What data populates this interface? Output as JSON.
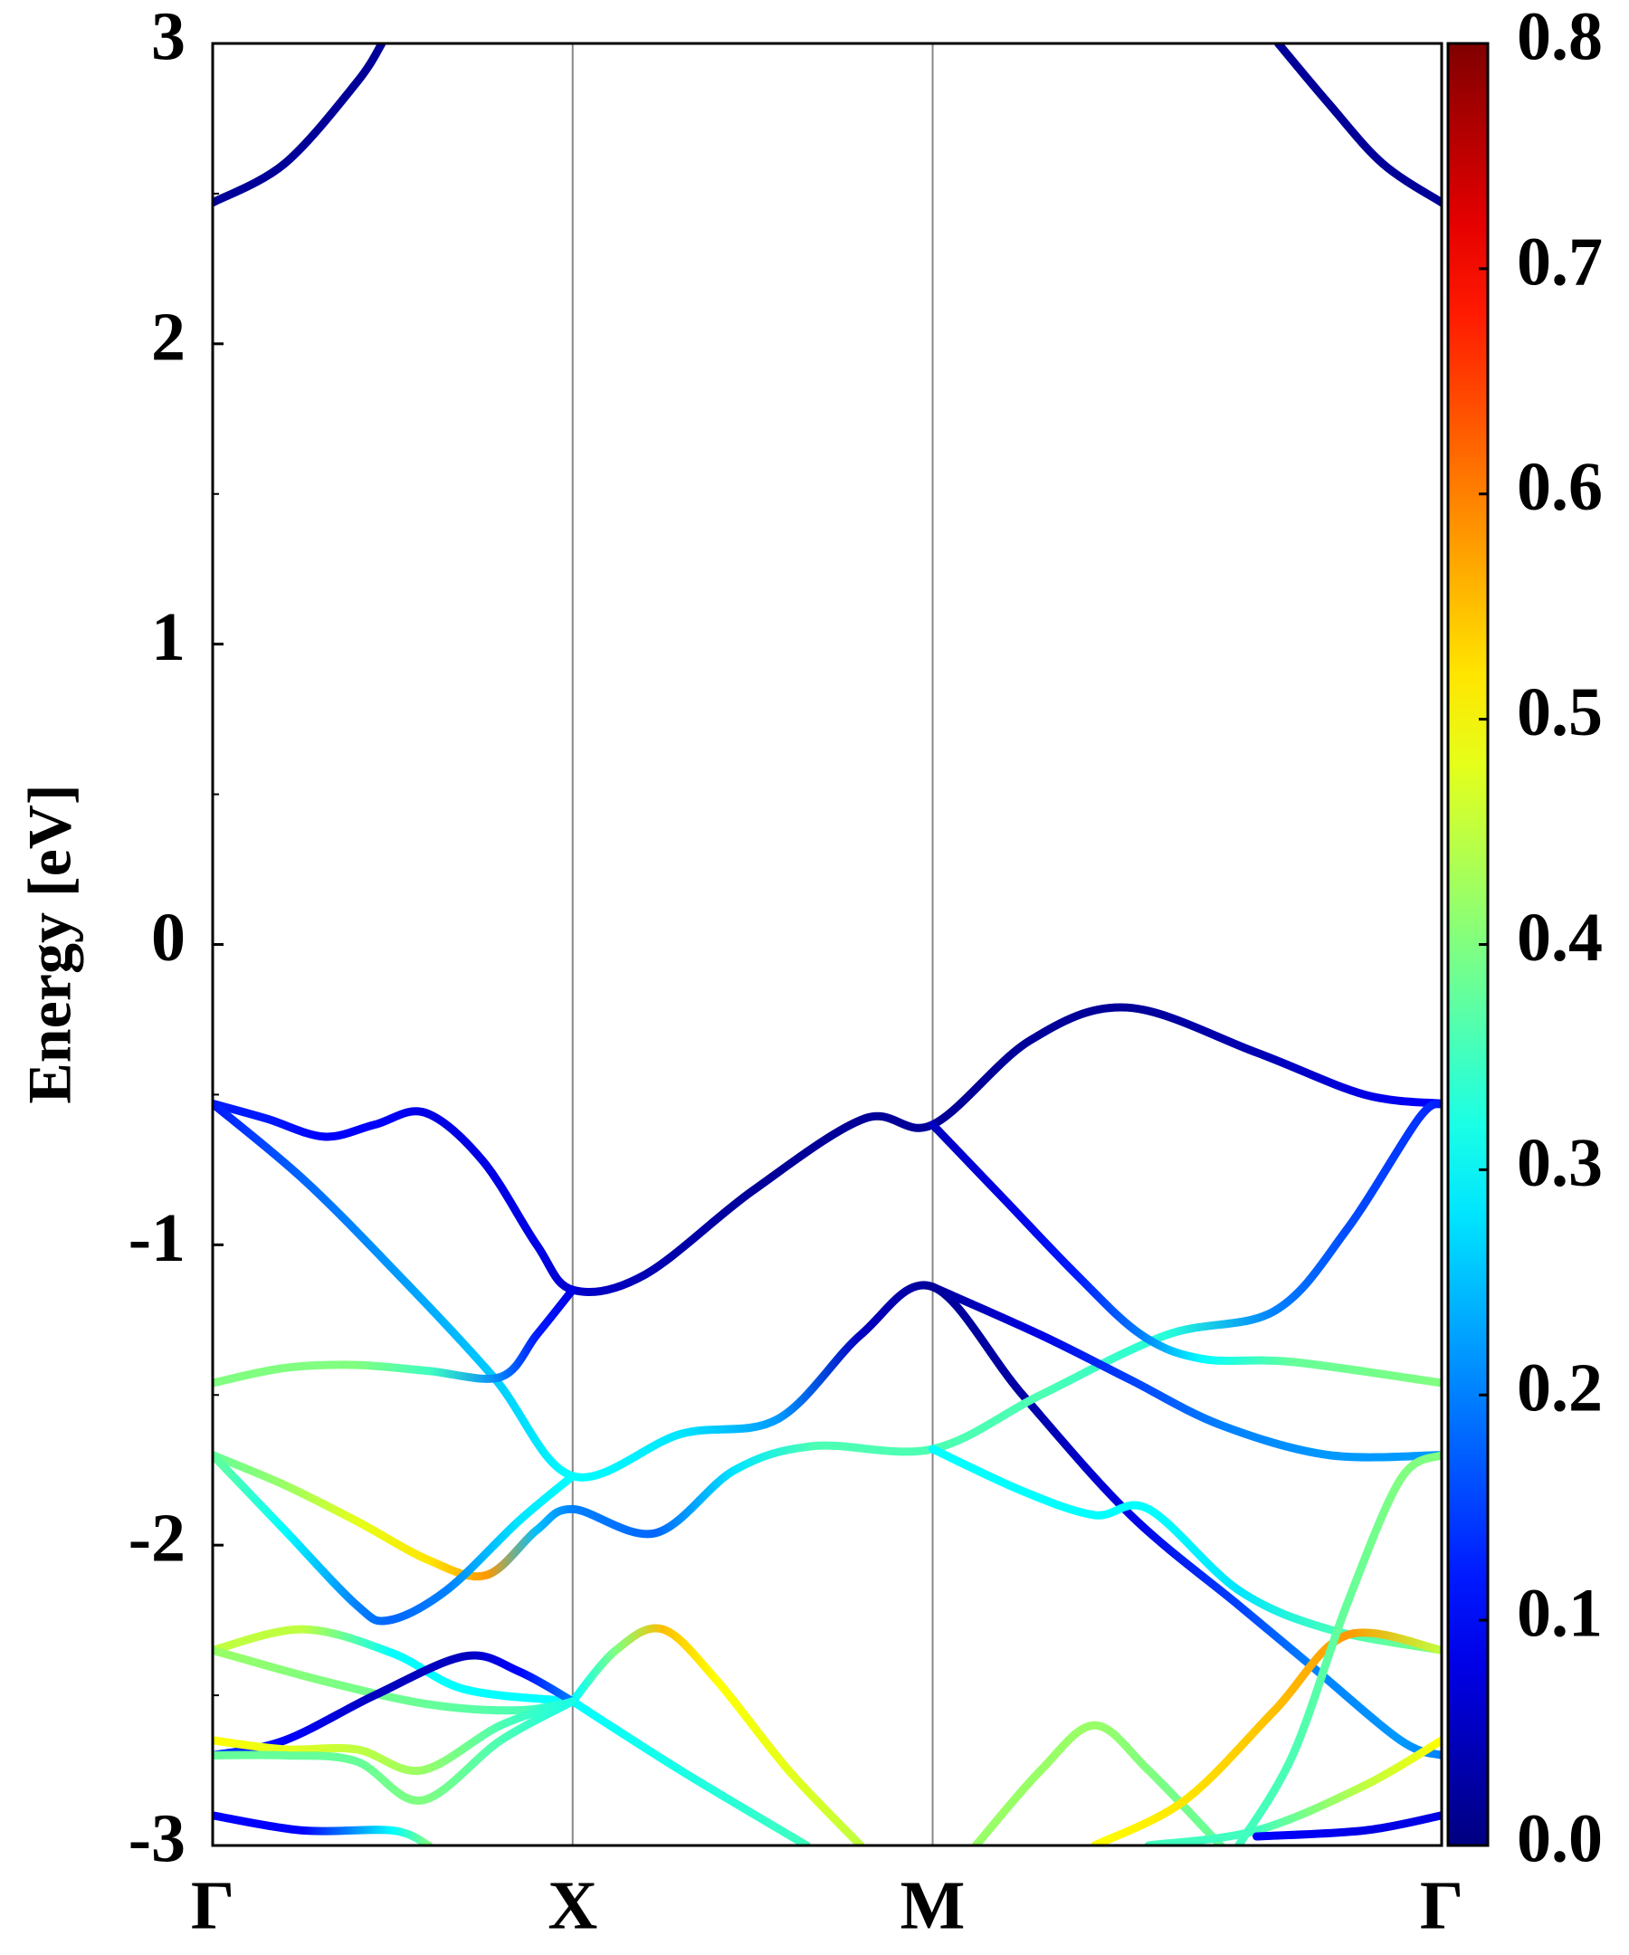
{
  "chart_data": {
    "type": "line",
    "ylabel": "Energy [eV]",
    "xlim": [
      0,
      3.414
    ],
    "xticks": [
      {
        "value": 0,
        "label": "Γ"
      },
      {
        "value": 1,
        "label": "X"
      },
      {
        "value": 2,
        "label": "M"
      },
      {
        "value": 3.414,
        "label": "Γ"
      }
    ],
    "xgrid": true,
    "ylim": [
      -3,
      3
    ],
    "yticks": [
      -3,
      -2,
      -1,
      0,
      1,
      2,
      3
    ],
    "yminor": [
      -2.5,
      -1.5,
      -0.5,
      0.5,
      1.5,
      2.5
    ],
    "colormap": "jet",
    "clim": [
      0,
      0.8
    ],
    "cticks": [
      {
        "value": 0,
        "label": "0.0"
      },
      {
        "value": 0.1,
        "label": "0.1"
      },
      {
        "value": 0.2,
        "label": "0.2"
      },
      {
        "value": 0.3,
        "label": "0.3"
      },
      {
        "value": 0.4,
        "label": "0.4"
      },
      {
        "value": 0.5,
        "label": "0.5"
      },
      {
        "value": 0.6,
        "label": "0.6"
      },
      {
        "value": 0.7,
        "label": "0.7"
      },
      {
        "value": 0.8,
        "label": "0.8"
      }
    ],
    "series": [
      {
        "x": [
          0,
          0.2,
          0.4,
          0.47
        ],
        "values": [
          2.47,
          2.6,
          2.87,
          3
        ],
        "weights": [
          0.02,
          0.02,
          0.02,
          0.02
        ]
      },
      {
        "x": [
          2.96,
          3.1,
          3.25,
          3.414
        ],
        "values": [
          3,
          2.8,
          2.6,
          2.47
        ],
        "weights": [
          0.02,
          0.02,
          0.02,
          0.02
        ]
      },
      {
        "x": [
          0,
          0.15,
          0.31,
          0.45,
          0.59,
          0.75,
          0.9,
          1,
          1.2,
          1.5,
          1.81,
          2,
          2.27,
          2.54,
          2.9,
          3.2,
          3.414
        ],
        "values": [
          -0.53,
          -0.58,
          -0.64,
          -0.6,
          -0.56,
          -0.72,
          -1.0,
          -1.15,
          -1.1,
          -0.82,
          -0.58,
          -0.6,
          -0.32,
          -0.21,
          -0.36,
          -0.5,
          -0.53
        ],
        "weights": [
          0.12,
          0.12,
          0.1,
          0.1,
          0.08,
          0.08,
          0.08,
          0.06,
          0.04,
          0.02,
          0.02,
          0.02,
          0.02,
          0.02,
          0.04,
          0.08,
          0.1
        ]
      },
      {
        "x": [
          0,
          0.25,
          0.5,
          0.78,
          1,
          1.3,
          1.57,
          1.8,
          2,
          2.25,
          2.55,
          2.85,
          3.05,
          3.3,
          3.414
        ],
        "values": [
          -0.53,
          -0.78,
          -1.08,
          -1.44,
          -1.77,
          -1.63,
          -1.58,
          -1.3,
          -1.14,
          -1.5,
          -1.9,
          -2.2,
          -2.4,
          -2.65,
          -2.7
        ],
        "weights": [
          0.12,
          0.18,
          0.22,
          0.26,
          0.3,
          0.28,
          0.22,
          0.05,
          0.02,
          0.03,
          0.08,
          0.15,
          0.2,
          0.22,
          0.2
        ]
      },
      {
        "x": [
          0,
          0.2,
          0.4,
          0.6,
          0.8,
          0.9,
          1
        ],
        "values": [
          -1.46,
          -1.41,
          -1.4,
          -1.42,
          -1.44,
          -1.3,
          -1.15
        ],
        "weights": [
          0.4,
          0.4,
          0.4,
          0.35,
          0.2,
          0.12,
          0.08
        ]
      },
      {
        "x": [
          0,
          0.2,
          0.4,
          0.6,
          0.76,
          0.9,
          1,
          1.23,
          1.45,
          1.67,
          2,
          2.3,
          2.65,
          2.95,
          3.15,
          3.35,
          3.414
        ],
        "values": [
          -1.7,
          -1.8,
          -1.92,
          -2.05,
          -2.1,
          -1.95,
          -1.88,
          -1.96,
          -1.75,
          -1.67,
          -1.68,
          -1.5,
          -1.3,
          -1.22,
          -0.95,
          -0.58,
          -0.53
        ],
        "weights": [
          0.38,
          0.42,
          0.48,
          0.52,
          0.58,
          0.25,
          0.2,
          0.18,
          0.28,
          0.36,
          0.36,
          0.36,
          0.33,
          0.2,
          0.16,
          0.14,
          0.12
        ]
      },
      {
        "x": [
          0,
          0.2,
          0.4,
          0.49,
          0.65,
          0.85,
          1
        ],
        "values": [
          -1.7,
          -1.95,
          -2.2,
          -2.25,
          -2.15,
          -1.92,
          -1.77
        ],
        "weights": [
          0.38,
          0.3,
          0.2,
          0.18,
          0.2,
          0.28,
          0.3
        ]
      },
      {
        "x": [
          2,
          2.2,
          2.4,
          2.58,
          2.75,
          3.0,
          3.414
        ],
        "values": [
          -0.6,
          -0.85,
          -1.1,
          -1.3,
          -1.38,
          -1.39,
          -1.46
        ],
        "weights": [
          0.05,
          0.08,
          0.12,
          0.2,
          0.3,
          0.38,
          0.4
        ]
      },
      {
        "x": [
          2,
          2.3,
          2.55,
          2.8,
          3.1,
          3.414
        ],
        "values": [
          -1.14,
          -1.3,
          -1.45,
          -1.6,
          -1.7,
          -1.7
        ],
        "weights": [
          0.02,
          0.08,
          0.15,
          0.2,
          0.22,
          0.22
        ]
      },
      {
        "x": [
          2,
          2.25,
          2.45,
          2.6,
          2.85,
          3.1,
          3.414
        ],
        "values": [
          -1.68,
          -1.82,
          -1.9,
          -1.88,
          -2.15,
          -2.28,
          -2.35
        ],
        "weights": [
          0.3,
          0.3,
          0.3,
          0.3,
          0.28,
          0.35,
          0.4
        ]
      },
      {
        "x": [
          1,
          1.12,
          1.25,
          1.4,
          1.6,
          1.8
        ],
        "values": [
          -2.52,
          -2.35,
          -2.28,
          -2.45,
          -2.75,
          -3
        ],
        "weights": [
          0.3,
          0.4,
          0.55,
          0.5,
          0.48,
          0.45
        ]
      },
      {
        "x": [
          1,
          1.3,
          1.65
        ],
        "values": [
          -2.52,
          -2.75,
          -3
        ],
        "weights": [
          0.3,
          0.32,
          0.35
        ]
      },
      {
        "x": [
          0,
          0.25,
          0.5,
          0.7,
          1
        ],
        "values": [
          -2.35,
          -2.28,
          -2.36,
          -2.48,
          -2.52
        ],
        "weights": [
          0.45,
          0.45,
          0.3,
          0.3,
          0.3
        ]
      },
      {
        "x": [
          0,
          0.3,
          0.6,
          0.85,
          1
        ],
        "values": [
          -2.35,
          -2.45,
          -2.53,
          -2.55,
          -2.52
        ],
        "weights": [
          0.42,
          0.4,
          0.38,
          0.36,
          0.32
        ]
      },
      {
        "x": [
          0,
          0.2,
          0.45,
          0.7,
          0.85,
          1
        ],
        "values": [
          -2.7,
          -2.65,
          -2.5,
          -2.37,
          -2.42,
          -2.52
        ],
        "weights": [
          0.15,
          0.1,
          0.05,
          0.05,
          0.1,
          0.2
        ]
      },
      {
        "x": [
          0,
          0.2,
          0.4,
          0.58,
          0.8,
          1
        ],
        "values": [
          -2.65,
          -2.68,
          -2.68,
          -2.75,
          -2.6,
          -2.52
        ],
        "weights": [
          0.5,
          0.48,
          0.45,
          0.42,
          0.36,
          0.32
        ]
      },
      {
        "x": [
          0,
          0.2,
          0.4,
          0.58,
          0.8,
          1
        ],
        "values": [
          -2.7,
          -2.7,
          -2.72,
          -2.85,
          -2.65,
          -2.52
        ],
        "weights": [
          0.38,
          0.38,
          0.38,
          0.4,
          0.36,
          0.32
        ]
      },
      {
        "x": [
          0,
          0.25,
          0.5,
          0.6
        ],
        "values": [
          -2.9,
          -2.95,
          -2.95,
          -3
        ],
        "weights": [
          0.1,
          0.1,
          0.3,
          0.4
        ]
      },
      {
        "x": [
          2.12,
          2.3,
          2.45,
          2.6,
          2.8
        ],
        "values": [
          -3,
          -2.75,
          -2.6,
          -2.75,
          -3
        ],
        "weights": [
          0.42,
          0.42,
          0.42,
          0.4,
          0.38
        ]
      },
      {
        "x": [
          2.45,
          2.7,
          2.95,
          3.15,
          3.414
        ],
        "values": [
          -3,
          -2.85,
          -2.55,
          -2.3,
          -2.35
        ],
        "weights": [
          0.5,
          0.52,
          0.55,
          0.58,
          0.45
        ]
      },
      {
        "x": [
          2.85,
          3.0,
          3.15,
          3.3,
          3.414
        ],
        "values": [
          -3,
          -2.7,
          -2.2,
          -1.78,
          -1.7
        ],
        "weights": [
          0.35,
          0.36,
          0.38,
          0.4,
          0.4
        ]
      },
      {
        "x": [
          2.6,
          2.9,
          3.2,
          3.414
        ],
        "values": [
          -3,
          -2.95,
          -2.8,
          -2.65
        ],
        "weights": [
          0.35,
          0.35,
          0.45,
          0.5
        ]
      },
      {
        "x": [
          2.9,
          3.2,
          3.414
        ],
        "values": [
          -2.97,
          -2.95,
          -2.9
        ],
        "weights": [
          0.1,
          0.08,
          0.08
        ]
      }
    ]
  }
}
